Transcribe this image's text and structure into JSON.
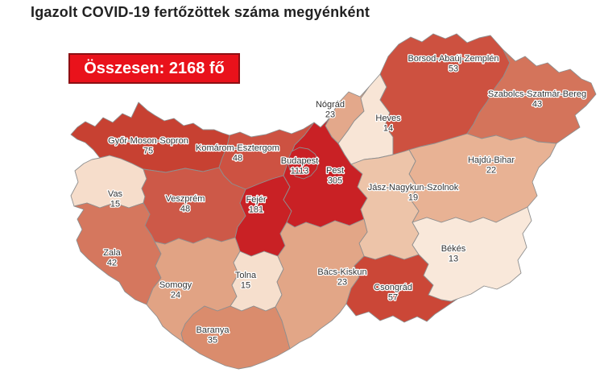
{
  "header": {
    "title": "Igazolt COVID-19 fertőzöttek száma megyénként"
  },
  "badge": {
    "label": "Összesen: 2168 fő"
  },
  "chart_data": {
    "type": "choropleth_map",
    "title": "Igazolt COVID-19 fertőzöttek száma megyénként",
    "total_label": "Összesen: 2168 fő",
    "total_value": 2168,
    "unit": "fő",
    "color_scale": {
      "low_value": 13,
      "high_value": 1113,
      "low_color": "#f9e8da",
      "high_color": "#c92125"
    },
    "regions": [
      {
        "name": "Győr-Moson-Sopron",
        "value": 75,
        "color": "#c74132"
      },
      {
        "name": "Komárom-Esztergom",
        "value": 48,
        "color": "#cd5242"
      },
      {
        "name": "Vas",
        "value": 15,
        "color": "#f6ddcb"
      },
      {
        "name": "Veszprém",
        "value": 48,
        "color": "#cd5948"
      },
      {
        "name": "Zala",
        "value": 42,
        "color": "#d5775e"
      },
      {
        "name": "Fejér",
        "value": 181,
        "color": "#c92125"
      },
      {
        "name": "Somogy",
        "value": 24,
        "color": "#e1a384"
      },
      {
        "name": "Tolna",
        "value": 15,
        "color": "#f6dfcd"
      },
      {
        "name": "Baranya",
        "value": 35,
        "color": "#da8c6d"
      },
      {
        "name": "Pest",
        "value": 305,
        "color": "#c92125"
      },
      {
        "name": "Budapest",
        "value": 1113,
        "color": "#c92125"
      },
      {
        "name": "Nógrád",
        "value": 23,
        "color": "#e3a88b"
      },
      {
        "name": "Heves",
        "value": 14,
        "color": "#f8e5d6"
      },
      {
        "name": "Borsod-Abaúj-Zemplén",
        "value": 53,
        "color": "#cd5140"
      },
      {
        "name": "Szabolcs-Szatmár-Bereg",
        "value": 43,
        "color": "#d4745b"
      },
      {
        "name": "Hajdú-Bihar",
        "value": 22,
        "color": "#e8b294"
      },
      {
        "name": "Jász-Nagykun-Szolnok",
        "value": 19,
        "color": "#edc4a9"
      },
      {
        "name": "Bács-Kiskun",
        "value": 23,
        "color": "#e2a687"
      },
      {
        "name": "Csongrád",
        "value": 57,
        "color": "#cb4737"
      },
      {
        "name": "Békés",
        "value": 13,
        "color": "#f9e8da"
      }
    ]
  }
}
